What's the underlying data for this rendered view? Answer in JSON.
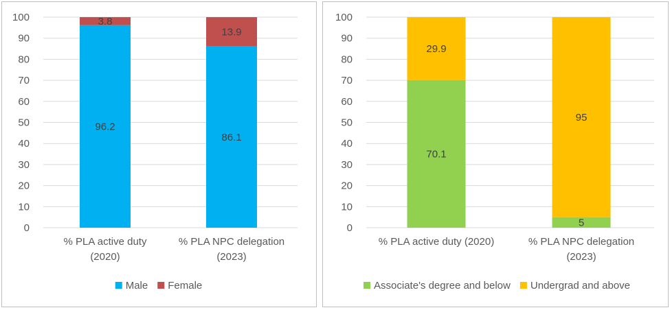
{
  "chart_data": [
    {
      "type": "bar",
      "stacked": true,
      "categories": [
        [
          "% PLA active duty",
          "(2020)"
        ],
        [
          "% PLA NPC delegation",
          "(2023)"
        ]
      ],
      "series": [
        {
          "name": "Male",
          "color": "#00B0F0",
          "values": [
            96.2,
            86.1
          ]
        },
        {
          "name": "Female",
          "color": "#C0504D",
          "values": [
            3.8,
            13.9
          ]
        }
      ],
      "ylim": [
        0,
        100
      ],
      "yticks": [
        0,
        10,
        20,
        30,
        40,
        50,
        60,
        70,
        80,
        90,
        100
      ],
      "gridlines": true,
      "legend": "bottom"
    },
    {
      "type": "bar",
      "stacked": true,
      "categories": [
        [
          "% PLA active duty (2020)"
        ],
        [
          "% PLA NPC delegation",
          "(2023)"
        ]
      ],
      "series": [
        {
          "name": "Associate's degree and below",
          "color": "#92D050",
          "values": [
            70.1,
            5
          ]
        },
        {
          "name": "Undergrad and above",
          "color": "#FFC000",
          "values": [
            29.9,
            95
          ]
        }
      ],
      "ylim": [
        0,
        100
      ],
      "yticks": [
        0,
        10,
        20,
        30,
        40,
        50,
        60,
        70,
        80,
        90,
        100
      ],
      "gridlines": true,
      "legend": "bottom"
    }
  ]
}
